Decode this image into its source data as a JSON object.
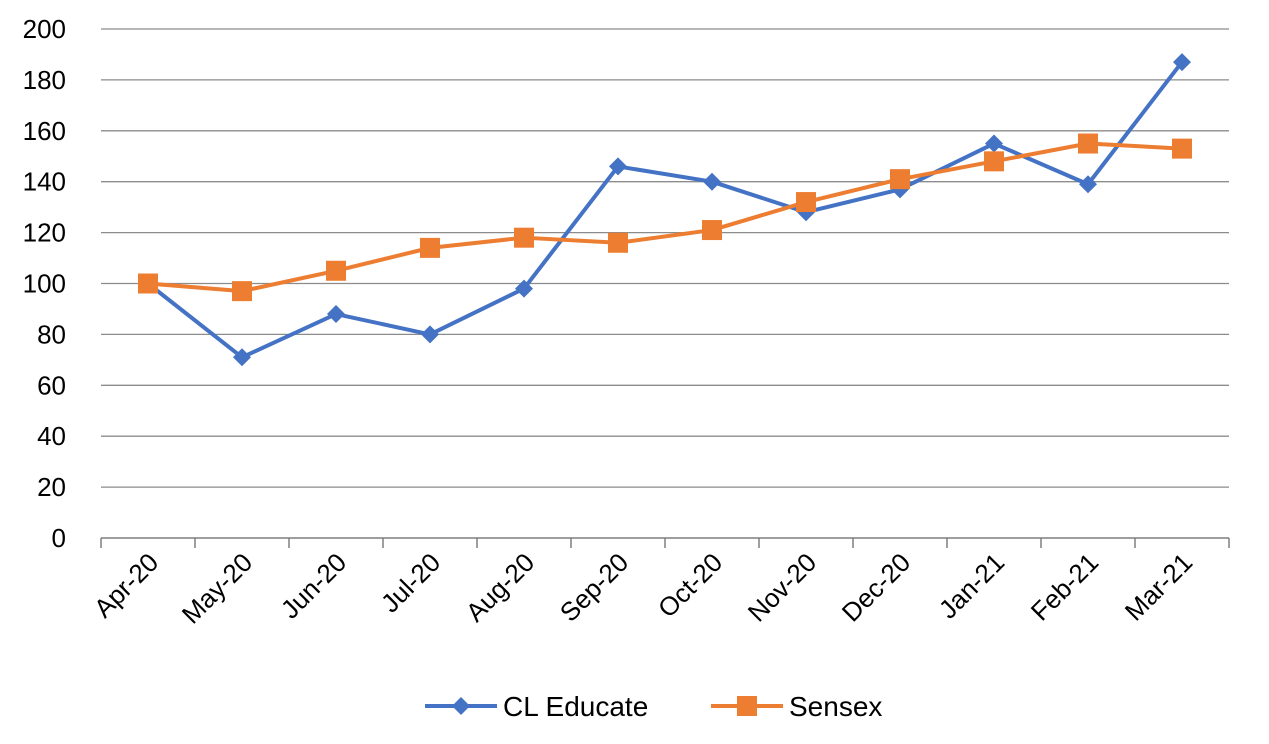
{
  "chart_data": {
    "type": "line",
    "title": "",
    "xlabel": "",
    "ylabel": "",
    "categories": [
      "Apr-20",
      "May-20",
      "Jun-20",
      "Jul-20",
      "Aug-20",
      "Sep-20",
      "Oct-20",
      "Nov-20",
      "Dec-20",
      "Jan-21",
      "Feb-21",
      "Mar-21"
    ],
    "ylim": [
      0,
      200
    ],
    "yticks": [
      "0",
      "20",
      "40",
      "60",
      "80",
      "100",
      "120",
      "140",
      "160",
      "180",
      "200"
    ],
    "grid": "horizontal",
    "legend_position": "bottom",
    "series": [
      {
        "name": "CL Educate",
        "color": "#4472C4",
        "marker": "diamond",
        "values": [
          100,
          71,
          88,
          80,
          98,
          146,
          140,
          128,
          137,
          155,
          139,
          187
        ]
      },
      {
        "name": "Sensex",
        "color": "#ED7D31",
        "marker": "square",
        "values": [
          100,
          97,
          105,
          114,
          118,
          116,
          121,
          132,
          141,
          148,
          155,
          153
        ]
      }
    ]
  }
}
